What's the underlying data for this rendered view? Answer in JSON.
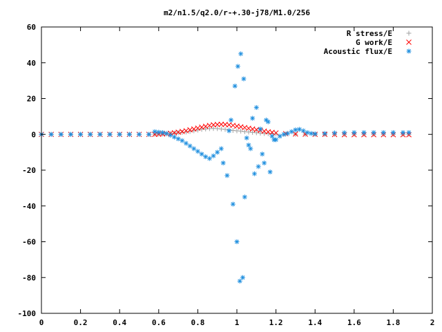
{
  "chart_data": {
    "type": "scatter",
    "title": "m2/n1.5/q2.0/r-+.30-j78/M1.0/256",
    "xlabel": "",
    "ylabel": "",
    "xlim": [
      0,
      2
    ],
    "ylim": [
      -100,
      60
    ],
    "xticks": [
      0,
      0.2,
      0.4,
      0.6,
      0.8,
      1,
      1.2,
      1.4,
      1.6,
      1.8,
      2
    ],
    "xtick_labels": [
      "0",
      "0.2",
      "0.4",
      "0.6",
      "0.8",
      "1",
      "1.2",
      "1.4",
      "1.6",
      "1.8",
      "2"
    ],
    "yticks": [
      -100,
      -80,
      -60,
      -40,
      -20,
      0,
      20,
      40,
      60
    ],
    "ytick_labels": [
      "-100",
      "-80",
      "-60",
      "-40",
      "-20",
      "0",
      "20",
      "40",
      "60"
    ],
    "grid": false,
    "legend_position": "top-right",
    "series": [
      {
        "name": "R stress/E",
        "marker": "plus",
        "color": "#a0a0a0",
        "points": [
          [
            0.0,
            0
          ],
          [
            0.05,
            0
          ],
          [
            0.1,
            0
          ],
          [
            0.15,
            0
          ],
          [
            0.2,
            0
          ],
          [
            0.25,
            0
          ],
          [
            0.3,
            0
          ],
          [
            0.35,
            0
          ],
          [
            0.4,
            0
          ],
          [
            0.45,
            0
          ],
          [
            0.5,
            0
          ],
          [
            0.55,
            0
          ],
          [
            0.58,
            0
          ],
          [
            0.6,
            0.1
          ],
          [
            0.62,
            0.2
          ],
          [
            0.64,
            0.3
          ],
          [
            0.66,
            0.5
          ],
          [
            0.68,
            0.7
          ],
          [
            0.7,
            0.9
          ],
          [
            0.72,
            1.1
          ],
          [
            0.74,
            1.3
          ],
          [
            0.76,
            1.6
          ],
          [
            0.78,
            2.0
          ],
          [
            0.8,
            2.4
          ],
          [
            0.82,
            2.8
          ],
          [
            0.84,
            3.0
          ],
          [
            0.86,
            3.2
          ],
          [
            0.88,
            3.3
          ],
          [
            0.9,
            3.2
          ],
          [
            0.92,
            3.0
          ],
          [
            0.94,
            2.8
          ],
          [
            0.96,
            2.5
          ],
          [
            0.98,
            2.2
          ],
          [
            1.0,
            2.0
          ],
          [
            1.02,
            1.8
          ],
          [
            1.04,
            1.5
          ],
          [
            1.06,
            1.3
          ],
          [
            1.08,
            1.1
          ],
          [
            1.1,
            0.9
          ],
          [
            1.12,
            0.7
          ],
          [
            1.14,
            0.5
          ],
          [
            1.16,
            0.4
          ],
          [
            1.18,
            0.3
          ],
          [
            1.2,
            0.2
          ],
          [
            1.25,
            0.1
          ],
          [
            1.3,
            0.05
          ],
          [
            1.35,
            0
          ],
          [
            1.4,
            0
          ],
          [
            1.45,
            0
          ],
          [
            1.5,
            0
          ],
          [
            1.55,
            0
          ],
          [
            1.6,
            0
          ],
          [
            1.65,
            0
          ],
          [
            1.7,
            0
          ],
          [
            1.75,
            0
          ],
          [
            1.8,
            0
          ],
          [
            1.85,
            0
          ],
          [
            1.88,
            0
          ]
        ]
      },
      {
        "name": "G work/E",
        "marker": "cross",
        "color": "#ff0000",
        "points": [
          [
            0.0,
            0
          ],
          [
            0.05,
            0
          ],
          [
            0.1,
            0
          ],
          [
            0.15,
            0
          ],
          [
            0.2,
            0
          ],
          [
            0.25,
            0
          ],
          [
            0.3,
            0
          ],
          [
            0.35,
            0
          ],
          [
            0.4,
            0
          ],
          [
            0.45,
            0
          ],
          [
            0.5,
            0
          ],
          [
            0.55,
            0
          ],
          [
            0.58,
            0
          ],
          [
            0.6,
            0.1
          ],
          [
            0.62,
            0.2
          ],
          [
            0.64,
            0.4
          ],
          [
            0.66,
            0.6
          ],
          [
            0.68,
            0.9
          ],
          [
            0.7,
            1.2
          ],
          [
            0.72,
            1.6
          ],
          [
            0.74,
            2.0
          ],
          [
            0.76,
            2.5
          ],
          [
            0.78,
            3.0
          ],
          [
            0.8,
            3.5
          ],
          [
            0.82,
            4.0
          ],
          [
            0.84,
            4.5
          ],
          [
            0.86,
            5.0
          ],
          [
            0.88,
            5.3
          ],
          [
            0.9,
            5.5
          ],
          [
            0.92,
            5.6
          ],
          [
            0.94,
            5.5
          ],
          [
            0.96,
            5.3
          ],
          [
            0.98,
            5.0
          ],
          [
            1.0,
            4.6
          ],
          [
            1.02,
            4.2
          ],
          [
            1.04,
            3.8
          ],
          [
            1.06,
            3.4
          ],
          [
            1.08,
            3.0
          ],
          [
            1.1,
            2.6
          ],
          [
            1.12,
            2.2
          ],
          [
            1.14,
            1.8
          ],
          [
            1.16,
            1.4
          ],
          [
            1.18,
            1.1
          ],
          [
            1.2,
            0.8
          ],
          [
            1.25,
            0.4
          ],
          [
            1.3,
            0.2
          ],
          [
            1.35,
            0.1
          ],
          [
            1.4,
            0
          ],
          [
            1.45,
            0
          ],
          [
            1.5,
            -0.1
          ],
          [
            1.55,
            -0.2
          ],
          [
            1.6,
            -0.2
          ],
          [
            1.65,
            -0.2
          ],
          [
            1.7,
            -0.2
          ],
          [
            1.75,
            -0.2
          ],
          [
            1.8,
            -0.2
          ],
          [
            1.85,
            -0.2
          ],
          [
            1.88,
            -0.2
          ]
        ]
      },
      {
        "name": "Acoustic flux/E",
        "marker": "star",
        "color": "#1f8fdf",
        "points": [
          [
            0.0,
            0
          ],
          [
            0.05,
            0
          ],
          [
            0.1,
            0
          ],
          [
            0.15,
            0
          ],
          [
            0.2,
            0
          ],
          [
            0.25,
            0
          ],
          [
            0.3,
            0
          ],
          [
            0.35,
            0
          ],
          [
            0.4,
            0
          ],
          [
            0.45,
            0
          ],
          [
            0.5,
            0
          ],
          [
            0.55,
            0
          ],
          [
            0.58,
            1.5
          ],
          [
            0.6,
            1.2
          ],
          [
            0.62,
            1.0
          ],
          [
            0.64,
            0.5
          ],
          [
            0.66,
            -0.5
          ],
          [
            0.68,
            -1.5
          ],
          [
            0.7,
            -2.5
          ],
          [
            0.72,
            -3.5
          ],
          [
            0.74,
            -5.0
          ],
          [
            0.76,
            -6.5
          ],
          [
            0.78,
            -8.0
          ],
          [
            0.8,
            -9.5
          ],
          [
            0.82,
            -11.0
          ],
          [
            0.84,
            -12.5
          ],
          [
            0.86,
            -13.5
          ],
          [
            0.88,
            -12.0
          ],
          [
            0.9,
            -10.0
          ],
          [
            0.92,
            -8.0
          ],
          [
            0.93,
            -16.0
          ],
          [
            0.95,
            -23.0
          ],
          [
            0.96,
            2.0
          ],
          [
            0.97,
            8.0
          ],
          [
            0.98,
            -39.0
          ],
          [
            0.99,
            27.0
          ],
          [
            1.0,
            -60.0
          ],
          [
            1.005,
            38.0
          ],
          [
            1.015,
            -82.0
          ],
          [
            1.02,
            45.0
          ],
          [
            1.03,
            -80.0
          ],
          [
            1.035,
            31.0
          ],
          [
            1.04,
            -35.0
          ],
          [
            1.05,
            -2.0
          ],
          [
            1.06,
            -6.0
          ],
          [
            1.07,
            -8.0
          ],
          [
            1.08,
            9.0
          ],
          [
            1.09,
            -22.0
          ],
          [
            1.1,
            15.0
          ],
          [
            1.11,
            -18.0
          ],
          [
            1.12,
            3.0
          ],
          [
            1.13,
            -11.0
          ],
          [
            1.14,
            -16.0
          ],
          [
            1.15,
            8.0
          ],
          [
            1.16,
            7.0
          ],
          [
            1.17,
            -21.0
          ],
          [
            1.18,
            -1.0
          ],
          [
            1.19,
            -3.0
          ],
          [
            1.2,
            -3.0
          ],
          [
            1.22,
            -1.0
          ],
          [
            1.24,
            0.0
          ],
          [
            1.26,
            0.5
          ],
          [
            1.28,
            1.5
          ],
          [
            1.3,
            2.5
          ],
          [
            1.32,
            2.8
          ],
          [
            1.34,
            2.0
          ],
          [
            1.36,
            1.0
          ],
          [
            1.38,
            0.5
          ],
          [
            1.4,
            0.3
          ],
          [
            1.45,
            0.5
          ],
          [
            1.5,
            0.8
          ],
          [
            1.55,
            0.9
          ],
          [
            1.6,
            1.0
          ],
          [
            1.65,
            1.0
          ],
          [
            1.7,
            1.0
          ],
          [
            1.75,
            1.0
          ],
          [
            1.8,
            1.0
          ],
          [
            1.85,
            1.0
          ],
          [
            1.88,
            1.0
          ]
        ]
      }
    ]
  }
}
